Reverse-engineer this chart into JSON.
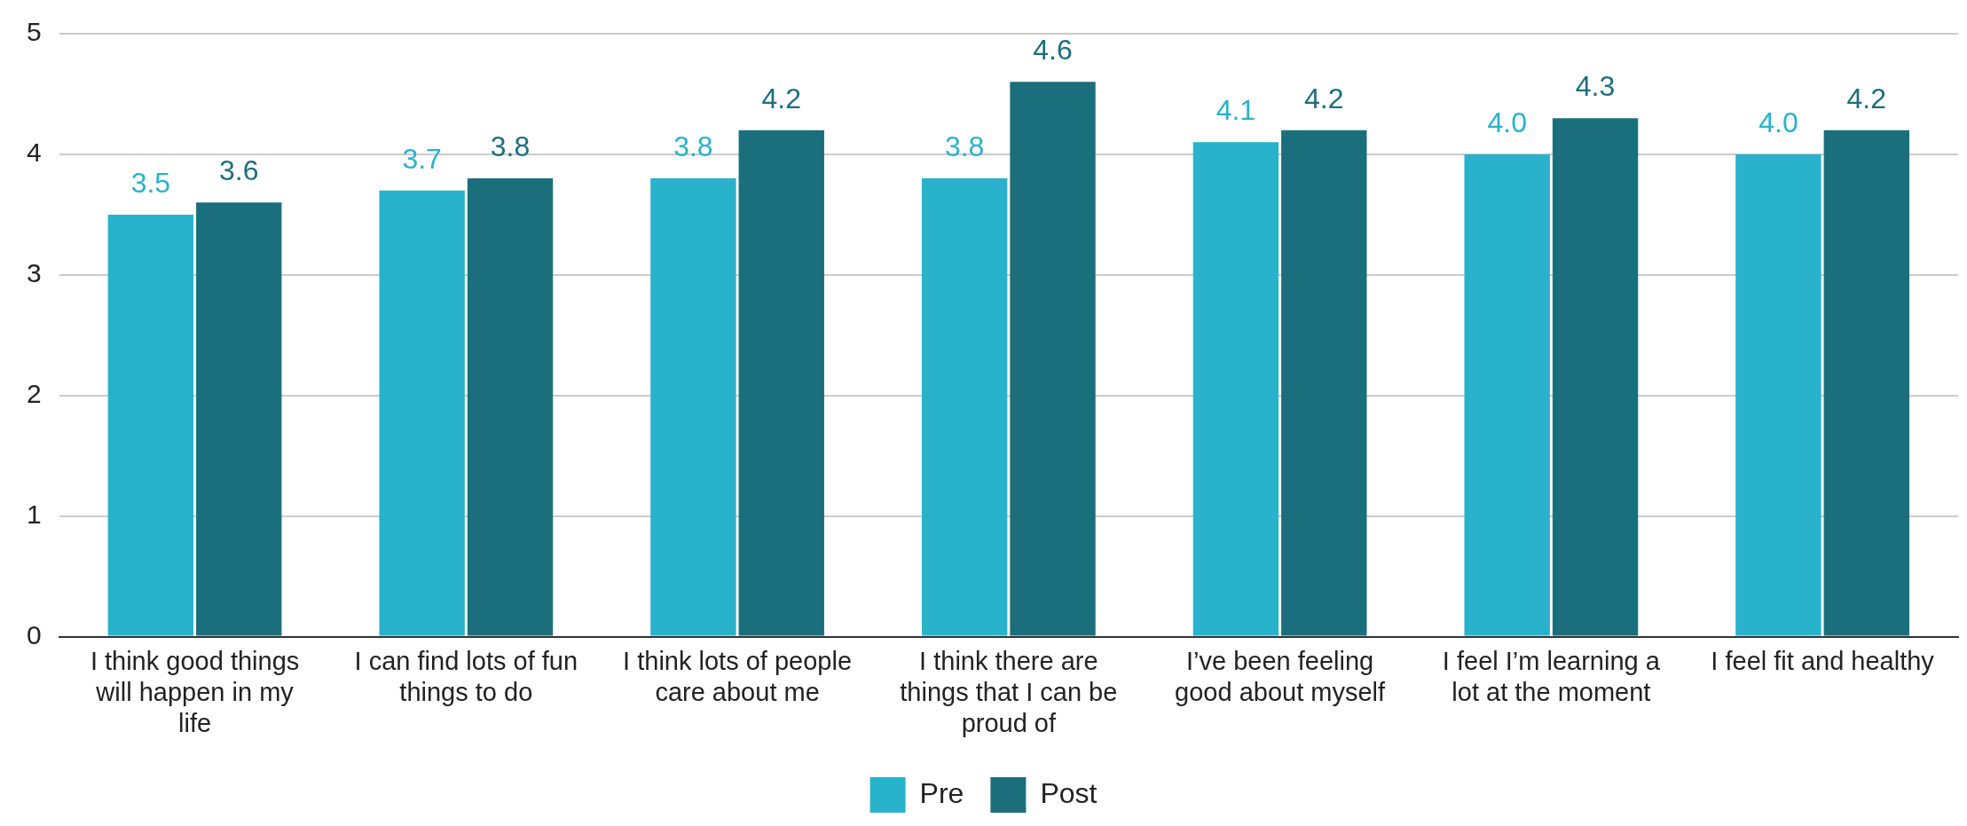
{
  "chart_data": {
    "type": "bar",
    "categories": [
      "I think good things will happen in my life",
      "I can find lots of fun things to do",
      "I think lots of people care about me",
      "I think there are things that I can be proud of",
      "I’ve been feeling good about myself",
      "I feel I’m learning a lot at the moment",
      "I feel fit and healthy"
    ],
    "series": [
      {
        "name": "Pre",
        "color": "#29b2cc",
        "values": [
          3.5,
          3.7,
          3.8,
          3.8,
          4.1,
          4.0,
          4.0
        ],
        "value_labels": [
          "3.5",
          "3.7",
          "3.8",
          "3.8",
          "4.1",
          "4.0",
          "4.0"
        ]
      },
      {
        "name": "Post",
        "color": "#1b6f7c",
        "values": [
          3.6,
          3.8,
          4.2,
          4.6,
          4.2,
          4.3,
          4.2
        ],
        "value_labels": [
          "3.6",
          "3.8",
          "4.2",
          "4.6",
          "4.2",
          "4.3",
          "4.2"
        ]
      }
    ],
    "ylim": [
      0,
      5
    ],
    "yticks": [
      0,
      1,
      2,
      3,
      4,
      5
    ],
    "grid": "y",
    "legend": "bottom"
  }
}
